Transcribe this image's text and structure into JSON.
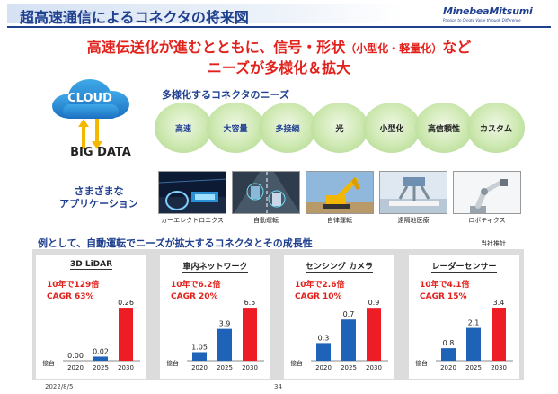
{
  "header": {
    "title": "超高速通信によるコネクタの将来図",
    "logo_text": "MinebeaMitsumi",
    "logo_tagline": "Passion to Create Value through Difference"
  },
  "headline": {
    "line1_main": "高速伝送化が進むとともに、信号・形状",
    "line1_paren": "（小型化・軽量化）",
    "line1_end": "など",
    "line2": "ニーズが多様化＆拡大"
  },
  "left": {
    "cloud_label": "CLOUD",
    "big_data": "BIG DATA",
    "apps_line1": "さまざまな",
    "apps_line2": "アプリケーション"
  },
  "needs": {
    "title": "多様化するコネクタのニーズ",
    "items": [
      {
        "label": "高速",
        "color": "blue"
      },
      {
        "label": "大容量",
        "color": "blue"
      },
      {
        "label": "多接続",
        "color": "blue"
      },
      {
        "label": "光",
        "color": "dark"
      },
      {
        "label": "小型化",
        "color": "dark"
      },
      {
        "label": "高信頼性",
        "color": "dark"
      },
      {
        "label": "カスタム",
        "color": "dark"
      }
    ]
  },
  "photos": [
    {
      "caption": "カーエレクトロニクス"
    },
    {
      "caption": "自動運転"
    },
    {
      "caption": "自律運転"
    },
    {
      "caption": "遠隔地医療"
    },
    {
      "caption": "ロボティクス"
    }
  ],
  "growth": {
    "title": "例として、自動運転でニーズが拡大するコネクタとその成長性",
    "note": "当社推計",
    "unit": "億台"
  },
  "chart_data": [
    {
      "type": "bar",
      "title": "3D LiDAR",
      "growth": "10年で129倍",
      "cagr": "CAGR 63%",
      "categories": [
        "2020",
        "2025",
        "2030"
      ],
      "values": [
        0.0,
        0.02,
        0.26
      ],
      "labels": [
        "0.00",
        "0.02",
        "0.26"
      ],
      "ylim": [
        0,
        0.3
      ]
    },
    {
      "type": "bar",
      "title": "車内ネットワーク",
      "growth": "10年で6.2倍",
      "cagr": "CAGR 20%",
      "categories": [
        "2020",
        "2025",
        "2030"
      ],
      "values": [
        1.05,
        3.9,
        6.5
      ],
      "labels": [
        "1.05",
        "3.9",
        "6.5"
      ],
      "ylim": [
        0,
        7.5
      ]
    },
    {
      "type": "bar",
      "title": "センシング カメラ",
      "growth": "10年で2.6倍",
      "cagr": "CAGR 10%",
      "categories": [
        "2020",
        "2025",
        "2030"
      ],
      "values": [
        0.3,
        0.7,
        0.9
      ],
      "labels": [
        "0.3",
        "0.7",
        "0.9"
      ],
      "ylim": [
        0,
        1.04
      ]
    },
    {
      "type": "bar",
      "title": "レーダーセンサー",
      "growth": "10年で4.1倍",
      "cagr": "CAGR 15%",
      "categories": [
        "2020",
        "2025",
        "2030"
      ],
      "values": [
        0.8,
        2.1,
        3.4
      ],
      "labels": [
        "0.8",
        "2.1",
        "3.4"
      ],
      "ylim": [
        0,
        3.92
      ]
    }
  ],
  "colors": {
    "blue_bar": "#1f63b8",
    "red_bar": "#ee1c25",
    "brand": "#1f3f8f",
    "accent_red": "#e2211c"
  },
  "footer": {
    "date": "2022/8/5",
    "page": "34"
  }
}
